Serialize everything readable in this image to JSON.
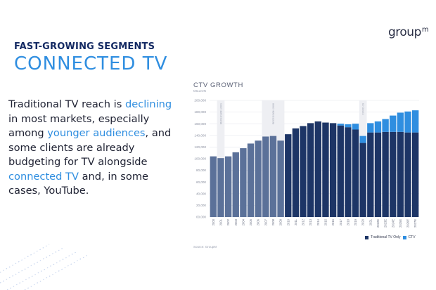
{
  "logo": {
    "text": "group",
    "sup": "m"
  },
  "eyebrow": "FAST-GROWING SEGMENTS",
  "title": "CONNECTED TV",
  "body": [
    {
      "t": "Traditional TV reach is ",
      "hl": false
    },
    {
      "t": "declining",
      "hl": true
    },
    {
      "t": " in most markets, especially among ",
      "hl": false
    },
    {
      "t": "younger audiences",
      "hl": true
    },
    {
      "t": ", and some clients are already budgeting for TV alongside ",
      "hl": false
    },
    {
      "t": "connected TV",
      "hl": true
    },
    {
      "t": " and, in some cases, YouTube.",
      "hl": false
    }
  ],
  "colors": {
    "navy": "#142a63",
    "accent": "#2f8ee0",
    "trad": "#1d3566",
    "trad_light": "#5b7199",
    "ctv": "#2f8ee0"
  },
  "chart_data": {
    "type": "bar",
    "stacked": true,
    "title": "CTV GROWTH",
    "unit_label": "MILLION",
    "source": "Source: GroupM",
    "ylim": [
      0,
      200000
    ],
    "yticks": [
      0,
      20000,
      40000,
      60000,
      80000,
      100000,
      120000,
      140000,
      160000,
      180000,
      200000
    ],
    "ytick_labels": [
      "00,000",
      "20,000",
      "40,000",
      "60,000",
      "80,000",
      "100,000",
      "120,000",
      "140,000",
      "160,000",
      "180,000",
      "200,000"
    ],
    "categories": [
      "2000",
      "2001",
      "2002",
      "2003",
      "2004",
      "2005",
      "2006",
      "2007",
      "2008",
      "2009",
      "2010",
      "2011",
      "2012",
      "2013",
      "2014",
      "2015",
      "2016",
      "2017",
      "2018",
      "2019",
      "2020",
      "2021",
      "2022E",
      "2023E",
      "2024E",
      "2025E",
      "2026E",
      "2027E"
    ],
    "series": [
      {
        "name": "Traditional TV Only",
        "values": [
          104000,
          101000,
          104000,
          111000,
          118000,
          126000,
          131000,
          138000,
          139000,
          131000,
          142000,
          152000,
          156000,
          161000,
          164000,
          162000,
          161000,
          157000,
          154000,
          150000,
          127000,
          145000,
          145000,
          146000,
          146000,
          146000,
          145000,
          145000
        ]
      },
      {
        "name": "CTV",
        "values": [
          0,
          0,
          0,
          0,
          0,
          0,
          0,
          0,
          0,
          0,
          0,
          0,
          0,
          0,
          0,
          0,
          0,
          3000,
          5000,
          10000,
          12000,
          16000,
          19000,
          22000,
          28000,
          33000,
          36000,
          38000
        ]
      }
    ],
    "muted_categories": [
      "2000",
      "2001",
      "2002",
      "2003",
      "2004",
      "2005",
      "2006",
      "2007",
      "2008",
      "2009"
    ],
    "recession_bands": [
      {
        "from": "2001",
        "to": "2001",
        "label": "RECESSION 2001"
      },
      {
        "from": "2007",
        "to": "2009",
        "label": "RECESSION 2008"
      },
      {
        "from": "2020",
        "to": "2020",
        "label": "COVID-19"
      }
    ]
  }
}
